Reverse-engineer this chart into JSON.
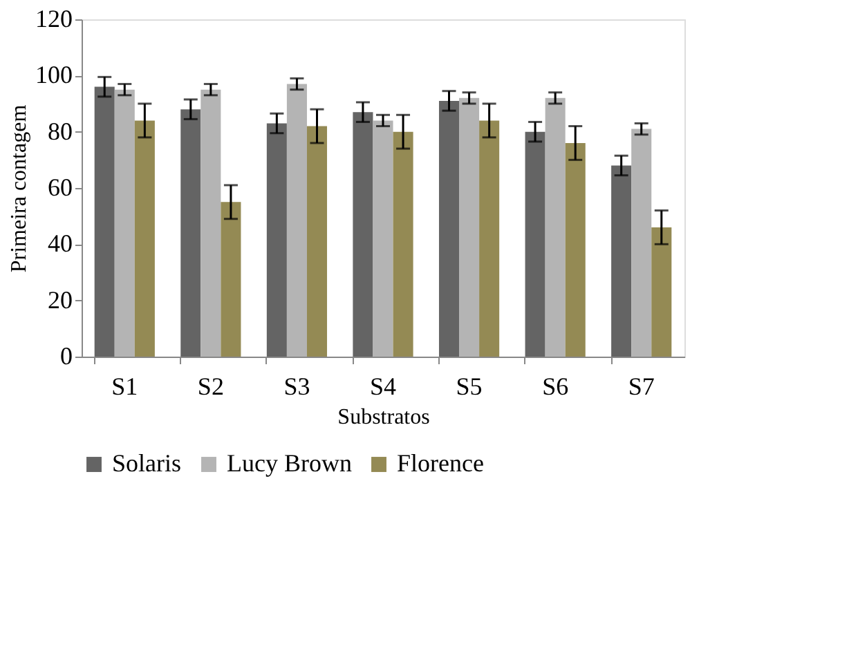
{
  "chart_data": {
    "type": "bar",
    "xlabel": "Substratos",
    "ylabel": "Primeira contagem",
    "categories": [
      "S1",
      "S2",
      "S3",
      "S4",
      "S5",
      "S6",
      "S7"
    ],
    "series": [
      {
        "name": "Solaris",
        "color": "#646464",
        "values": [
          96,
          88,
          83,
          87,
          91,
          80,
          68
        ],
        "errors": [
          3.5,
          3.5,
          3.5,
          3.5,
          3.5,
          3.5,
          3.5
        ]
      },
      {
        "name": "Lucy Brown",
        "color": "#b4b4b4",
        "values": [
          95,
          95,
          97,
          84,
          92,
          92,
          81
        ],
        "errors": [
          2,
          2,
          2,
          2,
          2,
          2,
          2
        ]
      },
      {
        "name": "Florence",
        "color": "#948a54",
        "values": [
          84,
          55,
          82,
          80,
          84,
          76,
          46
        ],
        "errors": [
          6,
          6,
          6,
          6,
          6,
          6,
          6
        ]
      }
    ],
    "ylim": [
      0,
      120
    ],
    "yticks": [
      0,
      20,
      40,
      60,
      80,
      100,
      120
    ],
    "grid": false,
    "legend": "bottom"
  }
}
